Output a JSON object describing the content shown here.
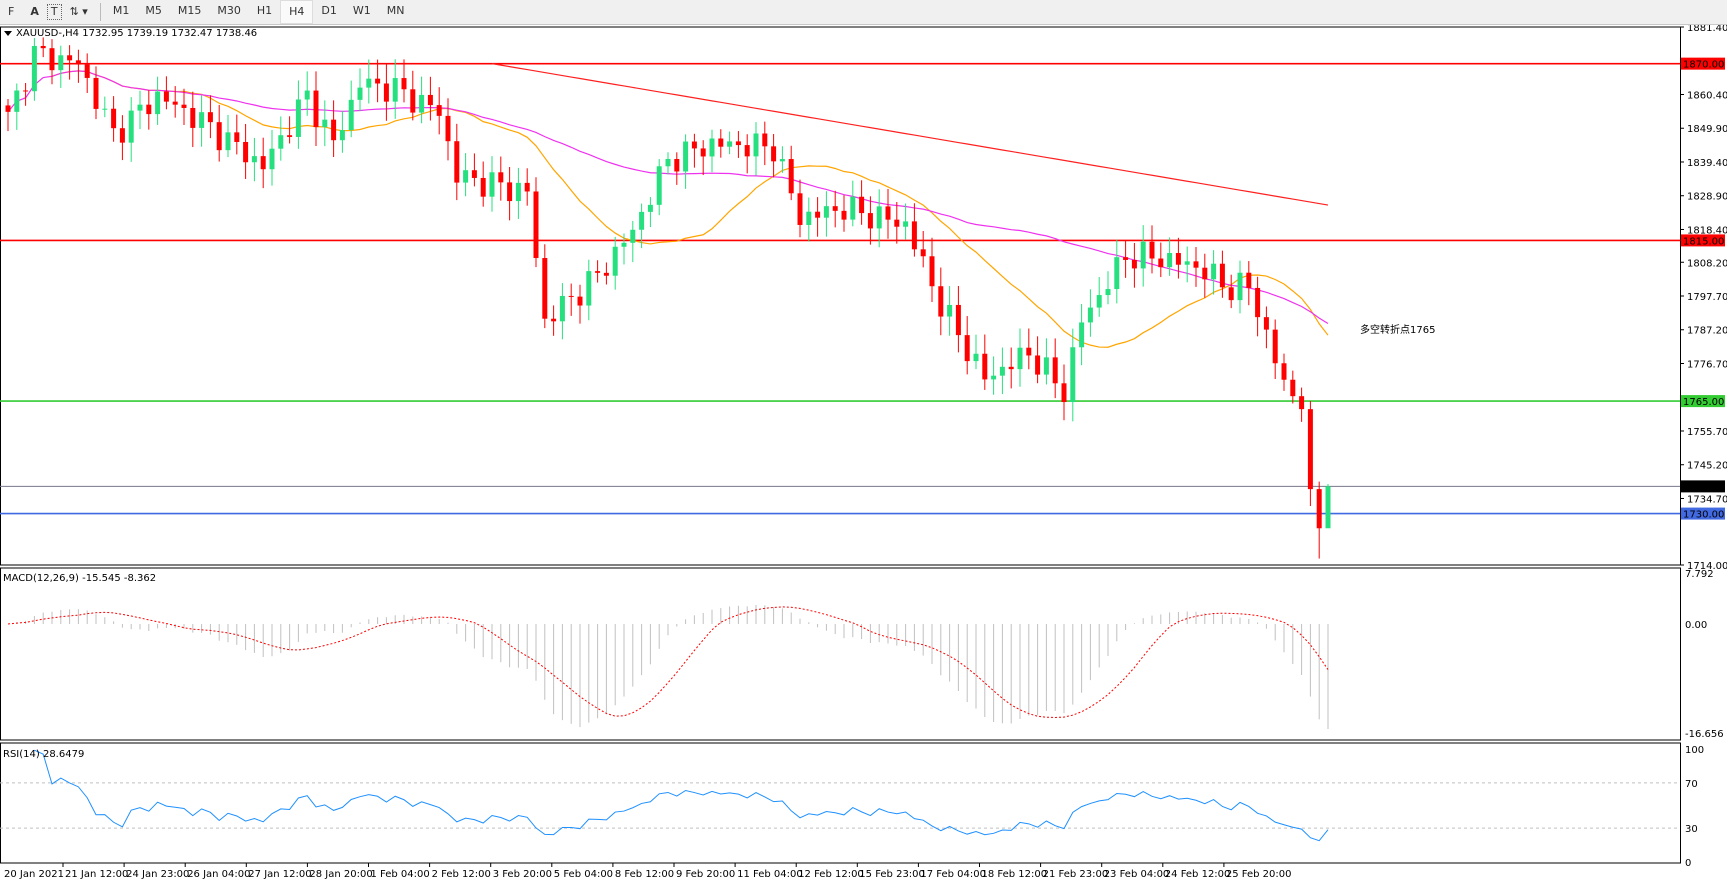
{
  "toolbar": {
    "tools": [
      {
        "icon": "fibo-icon",
        "label": "F"
      },
      {
        "icon": "text-icon",
        "label": "A"
      },
      {
        "icon": "text-label-icon",
        "label": "T"
      },
      {
        "icon": "arrows-icon",
        "label": "▾"
      }
    ],
    "timeframes": [
      "M1",
      "M5",
      "M15",
      "M30",
      "H1",
      "H4",
      "D1",
      "W1",
      "MN"
    ],
    "active": "H4"
  },
  "chart_title": "XAUUSD-,H4  1732.95 1739.19 1732.47 1738.46",
  "annotation": "多空转折点1765",
  "colors": {
    "bull": "#26e07f",
    "bear": "#ff0000",
    "ma_fast": "#ffa500",
    "ma_mid": "#ee33ee",
    "ma_slow": "#ff2020",
    "resistance": "#ff0000",
    "pivot": "#33cc33",
    "support": "#4169e1",
    "rsi": "#1e90ff",
    "macd_signal": "#ff0000",
    "macd_hist": "#c0c0c0"
  },
  "chart_data": {
    "type": "candlestick",
    "symbol": "XAUUSD-",
    "timeframe": "H4",
    "last": {
      "open": 1732.95,
      "high": 1739.19,
      "low": 1732.47,
      "close": 1738.46
    },
    "price_axis": [
      "1881.40",
      "1860.40",
      "1849.90",
      "1839.40",
      "1828.90",
      "1818.40",
      "1808.20",
      "1797.70",
      "1787.20",
      "1776.70",
      "1755.70",
      "1745.20",
      "1734.70",
      "1714.00"
    ],
    "ylim": [
      1714.0,
      1881.4
    ],
    "levels": [
      {
        "price": 1870.0,
        "label": "1870.00",
        "kind": "resistance"
      },
      {
        "price": 1815.0,
        "label": "1815.00",
        "kind": "resistance"
      },
      {
        "price": 1765.0,
        "label": "1765.00",
        "kind": "pivot"
      },
      {
        "price": 1730.0,
        "label": "1730.00",
        "kind": "support"
      },
      {
        "price": 1738.46,
        "label": "1738.46",
        "kind": "bid"
      }
    ],
    "close_path": [
      [
        0,
        1853
      ],
      [
        3,
        1873
      ],
      [
        8,
        1870
      ],
      [
        12,
        1848
      ],
      [
        17,
        1860
      ],
      [
        22,
        1852
      ],
      [
        29,
        1838
      ],
      [
        34,
        1860
      ],
      [
        37,
        1845
      ],
      [
        40,
        1864
      ],
      [
        44,
        1862
      ],
      [
        49,
        1855
      ],
      [
        51,
        1835
      ],
      [
        59,
        1830
      ],
      [
        61,
        1790
      ],
      [
        67,
        1804
      ],
      [
        71,
        1818
      ],
      [
        75,
        1840
      ],
      [
        80,
        1845
      ],
      [
        87,
        1844
      ],
      [
        90,
        1822
      ],
      [
        95,
        1825
      ],
      [
        102,
        1820
      ],
      [
        106,
        1795
      ],
      [
        111,
        1772
      ],
      [
        116,
        1780
      ],
      [
        120,
        1768
      ],
      [
        122,
        1790
      ],
      [
        127,
        1810
      ],
      [
        130,
        1810
      ],
      [
        135,
        1807
      ],
      [
        139,
        1800
      ],
      [
        141,
        1801
      ],
      [
        145,
        1770
      ],
      [
        147,
        1765
      ],
      [
        148,
        1733
      ],
      [
        149,
        1727
      ],
      [
        150,
        1738.46
      ]
    ],
    "x_labels": [
      "20 Jan 2021",
      "21 Jan 12:00",
      "24 Jan 23:00",
      "26 Jan 04:00",
      "27 Jan 12:00",
      "28 Jan 20:00",
      "1 Feb 04:00",
      "2 Feb 12:00",
      "3 Feb 20:00",
      "5 Feb 04:00",
      "8 Feb 12:00",
      "9 Feb 20:00",
      "11 Feb 04:00",
      "12 Feb 12:00",
      "15 Feb 23:00",
      "17 Feb 04:00",
      "18 Feb 12:00",
      "21 Feb 23:00",
      "23 Feb 04:00",
      "24 Feb 12:00",
      "25 Feb 20:00"
    ],
    "macd": {
      "label": "MACD(12,26,9) -15.545 -8.362",
      "axis": [
        "7.792",
        "0.00",
        "-16.656"
      ],
      "ylim": [
        -16.656,
        7.792
      ]
    },
    "rsi": {
      "label": "RSI(14) 28.6479",
      "axis": [
        "100",
        "70",
        "30",
        "0"
      ],
      "levels": [
        70,
        30
      ],
      "ylim": [
        0,
        100
      ]
    }
  }
}
